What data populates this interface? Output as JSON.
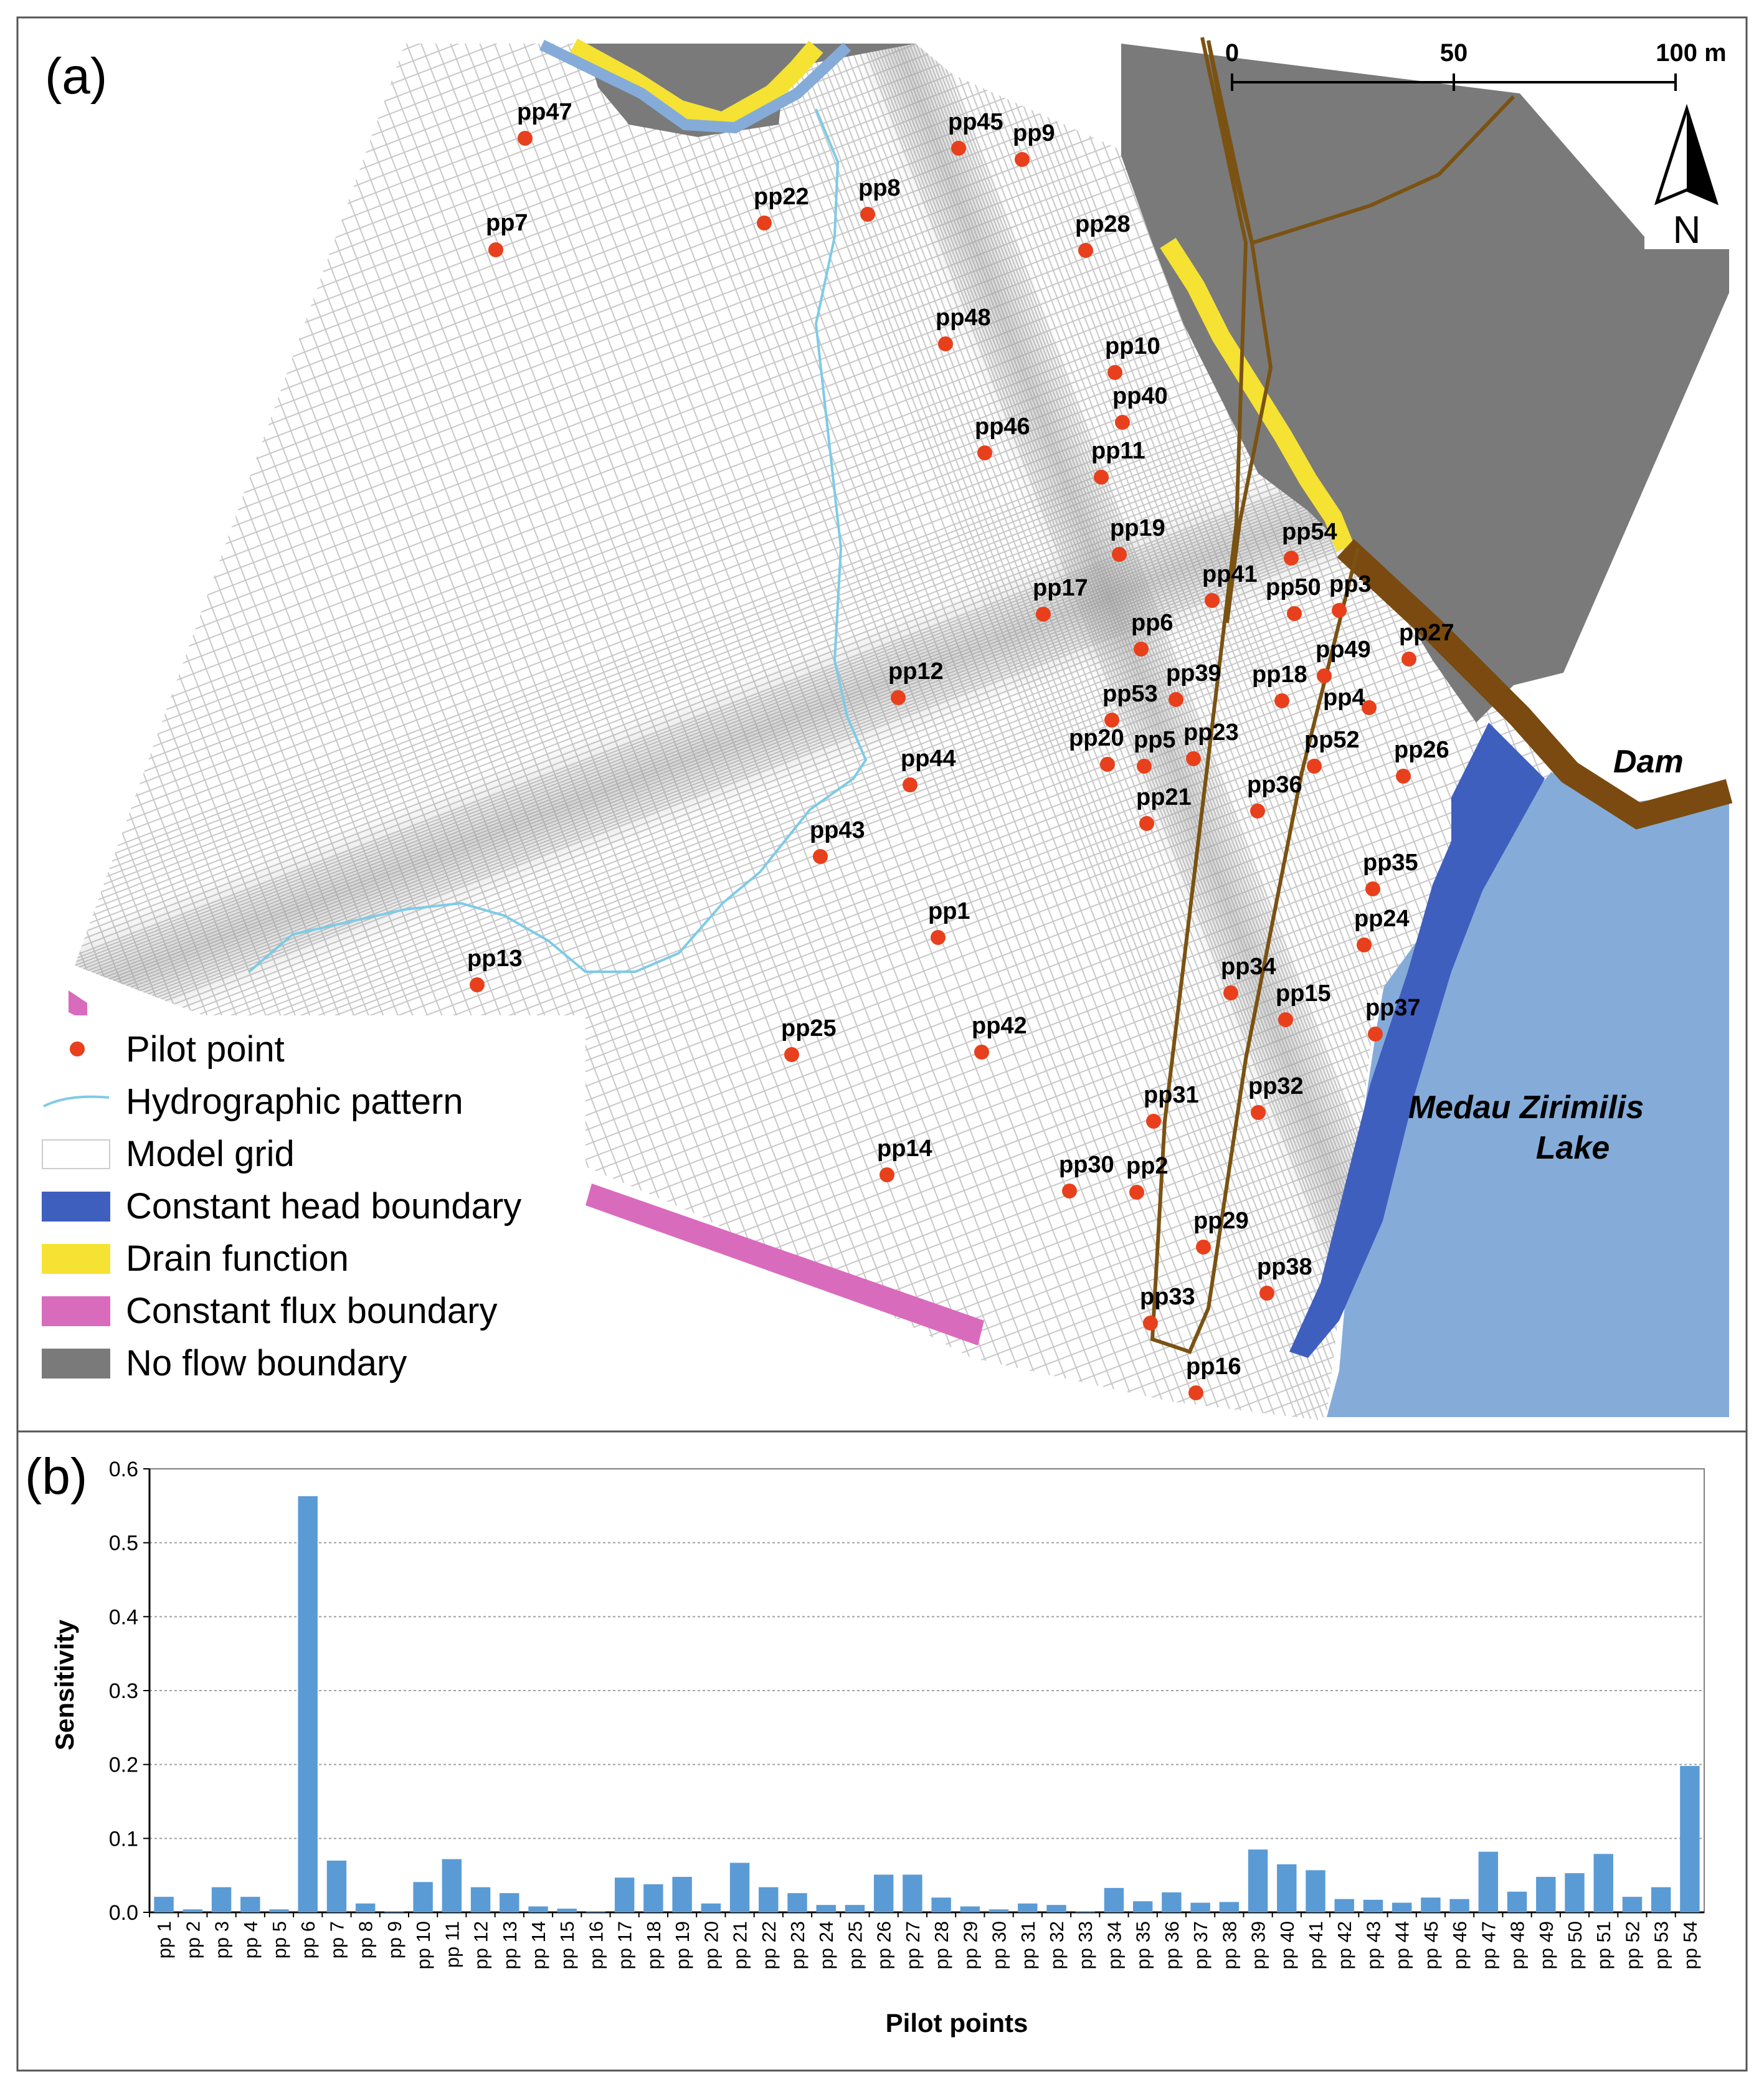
{
  "panel_a": {
    "label": "(a)",
    "scale_bar": {
      "ticks": [
        "0",
        "50",
        "100 m"
      ]
    },
    "north_label": "N",
    "dam_label": "Dam",
    "lake_label_line1": "Medau Zirimilis",
    "lake_label_line2": "Lake",
    "pilot_points": [
      {
        "id": "pp47"
      },
      {
        "id": "pp7"
      },
      {
        "id": "pp22"
      },
      {
        "id": "pp8"
      },
      {
        "id": "pp45"
      },
      {
        "id": "pp9"
      },
      {
        "id": "pp28"
      },
      {
        "id": "pp48"
      },
      {
        "id": "pp10"
      },
      {
        "id": "pp40"
      },
      {
        "id": "pp46"
      },
      {
        "id": "pp11"
      },
      {
        "id": "pp19"
      },
      {
        "id": "pp54"
      },
      {
        "id": "pp41"
      },
      {
        "id": "pp50"
      },
      {
        "id": "pp3"
      },
      {
        "id": "pp17"
      },
      {
        "id": "pp6"
      },
      {
        "id": "pp27"
      },
      {
        "id": "pp49"
      },
      {
        "id": "pp12"
      },
      {
        "id": "pp39"
      },
      {
        "id": "pp18"
      },
      {
        "id": "pp53"
      },
      {
        "id": "pp4"
      },
      {
        "id": "pp20"
      },
      {
        "id": "pp5"
      },
      {
        "id": "pp23"
      },
      {
        "id": "pp52"
      },
      {
        "id": "pp26"
      },
      {
        "id": "pp44"
      },
      {
        "id": "pp36"
      },
      {
        "id": "pp21"
      },
      {
        "id": "pp43"
      },
      {
        "id": "pp35"
      },
      {
        "id": "pp1"
      },
      {
        "id": "pp24"
      },
      {
        "id": "pp13"
      },
      {
        "id": "pp34"
      },
      {
        "id": "pp15"
      },
      {
        "id": "pp37"
      },
      {
        "id": "pp25"
      },
      {
        "id": "pp42"
      },
      {
        "id": "pp31"
      },
      {
        "id": "pp32"
      },
      {
        "id": "pp14"
      },
      {
        "id": "pp30"
      },
      {
        "id": "pp2"
      },
      {
        "id": "pp29"
      },
      {
        "id": "pp38"
      },
      {
        "id": "pp33"
      },
      {
        "id": "pp16"
      }
    ],
    "legend": [
      {
        "name": "pilot-point",
        "label": "Pilot point",
        "color": "#e8401c"
      },
      {
        "name": "hydrographic-pattern",
        "label": "Hydrographic pattern",
        "color": "#7ecbe6"
      },
      {
        "name": "model-grid",
        "label": "Model grid",
        "color": "#ffffff"
      },
      {
        "name": "constant-head-boundary",
        "label": "Constant head boundary",
        "color": "#3f5fbf"
      },
      {
        "name": "drain-function",
        "label": "Drain function",
        "color": "#f5e233"
      },
      {
        "name": "constant-flux-boundary",
        "label": "Constant flux boundary",
        "color": "#d96bbd"
      },
      {
        "name": "no-flow-boundary",
        "label": "No flow boundary",
        "color": "#7a7a7a"
      }
    ],
    "colors": {
      "pilot_point": "#e8401c",
      "lake": "#85acd9",
      "dam": "#7a4a10",
      "flow_path": "#7a5212",
      "grid_line": "#c8c8c8"
    }
  },
  "panel_b": {
    "label": "(b)",
    "chart_data": {
      "type": "bar",
      "title": "",
      "xlabel": "Pilot points",
      "ylabel": "Sensitivity",
      "ylim": [
        0,
        0.6
      ],
      "yticks": [
        "0.0",
        "0.1",
        "0.2",
        "0.3",
        "0.4",
        "0.5",
        "0.6"
      ],
      "grid": true,
      "bar_color": "#5b9bd5",
      "categories": [
        "pp 1",
        "pp 2",
        "pp 3",
        "pp 4",
        "pp 5",
        "pp 6",
        "pp 7",
        "pp 8",
        "pp 9",
        "pp 10",
        "pp 11",
        "pp 12",
        "pp 13",
        "pp 14",
        "pp 15",
        "pp 16",
        "pp 17",
        "pp 18",
        "pp 19",
        "pp 20",
        "pp 21",
        "pp 22",
        "pp 23",
        "pp 24",
        "pp 25",
        "pp 26",
        "pp 27",
        "pp 28",
        "pp 29",
        "pp 30",
        "pp 31",
        "pp 32",
        "pp 33",
        "pp 34",
        "pp 35",
        "pp 36",
        "pp 37",
        "pp 38",
        "pp 39",
        "pp 40",
        "pp 41",
        "pp 42",
        "pp 43",
        "pp 44",
        "pp 45",
        "pp 46",
        "pp 47",
        "pp 48",
        "pp 49",
        "pp 50",
        "pp 51",
        "pp 52",
        "pp 53",
        "pp 54"
      ],
      "values": [
        0.021,
        0.004,
        0.034,
        0.021,
        0.004,
        0.563,
        0.07,
        0.012,
        0.001,
        0.041,
        0.072,
        0.034,
        0.026,
        0.008,
        0.005,
        0.001,
        0.047,
        0.038,
        0.048,
        0.012,
        0.067,
        0.034,
        0.026,
        0.01,
        0.01,
        0.051,
        0.051,
        0.02,
        0.008,
        0.004,
        0.012,
        0.01,
        0.001,
        0.033,
        0.015,
        0.027,
        0.013,
        0.014,
        0.085,
        0.065,
        0.057,
        0.018,
        0.017,
        0.013,
        0.02,
        0.018,
        0.082,
        0.028,
        0.048,
        0.053,
        0.079,
        0.021,
        0.034,
        0.198
      ]
    }
  }
}
